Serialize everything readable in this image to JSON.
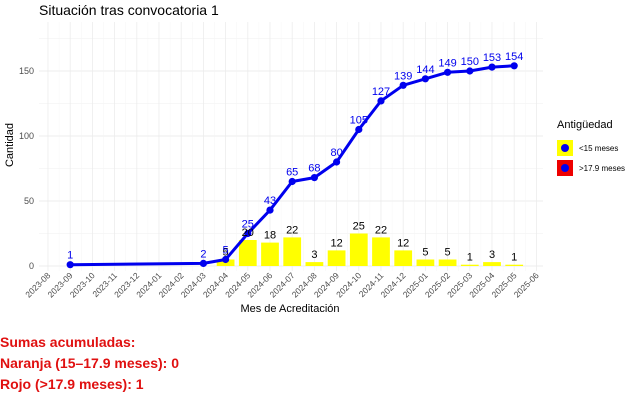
{
  "title": "Situación tras convocatoria 1",
  "chart_data": {
    "type": "bar+line",
    "xlabel": "Mes de Acreditación",
    "ylabel": "Cantidad",
    "categories": [
      "2023-08",
      "2023-09",
      "2023-10",
      "2023-11",
      "2023-12",
      "2024-01",
      "2024-02",
      "2024-03",
      "2024-04",
      "2024-05",
      "2024-06",
      "2024-07",
      "2024-08",
      "2024-09",
      "2024-10",
      "2024-11",
      "2024-12",
      "2025-01",
      "2025-02",
      "2025-03",
      "2025-04",
      "2025-05",
      "2025-06"
    ],
    "yticks": [
      0,
      50,
      100,
      150
    ],
    "ylim": [
      0,
      180
    ],
    "grid": true,
    "bars": {
      "color": "#ffff00",
      "points": [
        {
          "x": "2024-04",
          "value": 5
        },
        {
          "x": "2024-05",
          "value": 20
        },
        {
          "x": "2024-06",
          "value": 18
        },
        {
          "x": "2024-07",
          "value": 22
        },
        {
          "x": "2024-08",
          "value": 3
        },
        {
          "x": "2024-09",
          "value": 12
        },
        {
          "x": "2024-10",
          "value": 25
        },
        {
          "x": "2024-11",
          "value": 22
        },
        {
          "x": "2024-12",
          "value": 12
        },
        {
          "x": "2025-01",
          "value": 5
        },
        {
          "x": "2025-02",
          "value": 5
        },
        {
          "x": "2025-03",
          "value": 1
        },
        {
          "x": "2025-04",
          "value": 3
        },
        {
          "x": "2025-05",
          "value": 1
        }
      ],
      "labels": [
        "5",
        "20",
        "18",
        "22",
        "3",
        "12",
        "25",
        "22",
        "12",
        "5",
        "5",
        "1",
        "3",
        "1"
      ]
    },
    "line": {
      "color": "#0000ee",
      "points": [
        {
          "x": "2023-09",
          "value": 1
        },
        {
          "x": "2024-03",
          "value": 2
        },
        {
          "x": "2024-04",
          "value": 5
        },
        {
          "x": "2024-05",
          "value": 25
        },
        {
          "x": "2024-06",
          "value": 43
        },
        {
          "x": "2024-07",
          "value": 65
        },
        {
          "x": "2024-08",
          "value": 68
        },
        {
          "x": "2024-09",
          "value": 80
        },
        {
          "x": "2024-10",
          "value": 105
        },
        {
          "x": "2024-11",
          "value": 127
        },
        {
          "x": "2024-12",
          "value": 139
        },
        {
          "x": "2025-01",
          "value": 144
        },
        {
          "x": "2025-02",
          "value": 149
        },
        {
          "x": "2025-03",
          "value": 150
        },
        {
          "x": "2025-04",
          "value": 153
        },
        {
          "x": "2025-05",
          "value": 154
        }
      ],
      "labels": [
        "1",
        "2",
        "5",
        "25",
        "43",
        "65",
        "68",
        "80",
        "105",
        "127",
        "139",
        "144",
        "149",
        "150",
        "153",
        "154"
      ]
    }
  },
  "legend": {
    "title": "Antigüedad",
    "placement": "right",
    "items": [
      {
        "label": "<15 meses",
        "fill": "#ffff00",
        "dot": "#0000ee"
      },
      {
        "label": ">17.9 meses",
        "fill": "#ee0000",
        "dot": "#0000ee"
      }
    ]
  },
  "summary": {
    "heading": "Sumas acumuladas:",
    "orange": "Naranja (15–17.9 meses): 0",
    "red": "Rojo (>17.9 meses): 1",
    "color": "#e01010"
  }
}
